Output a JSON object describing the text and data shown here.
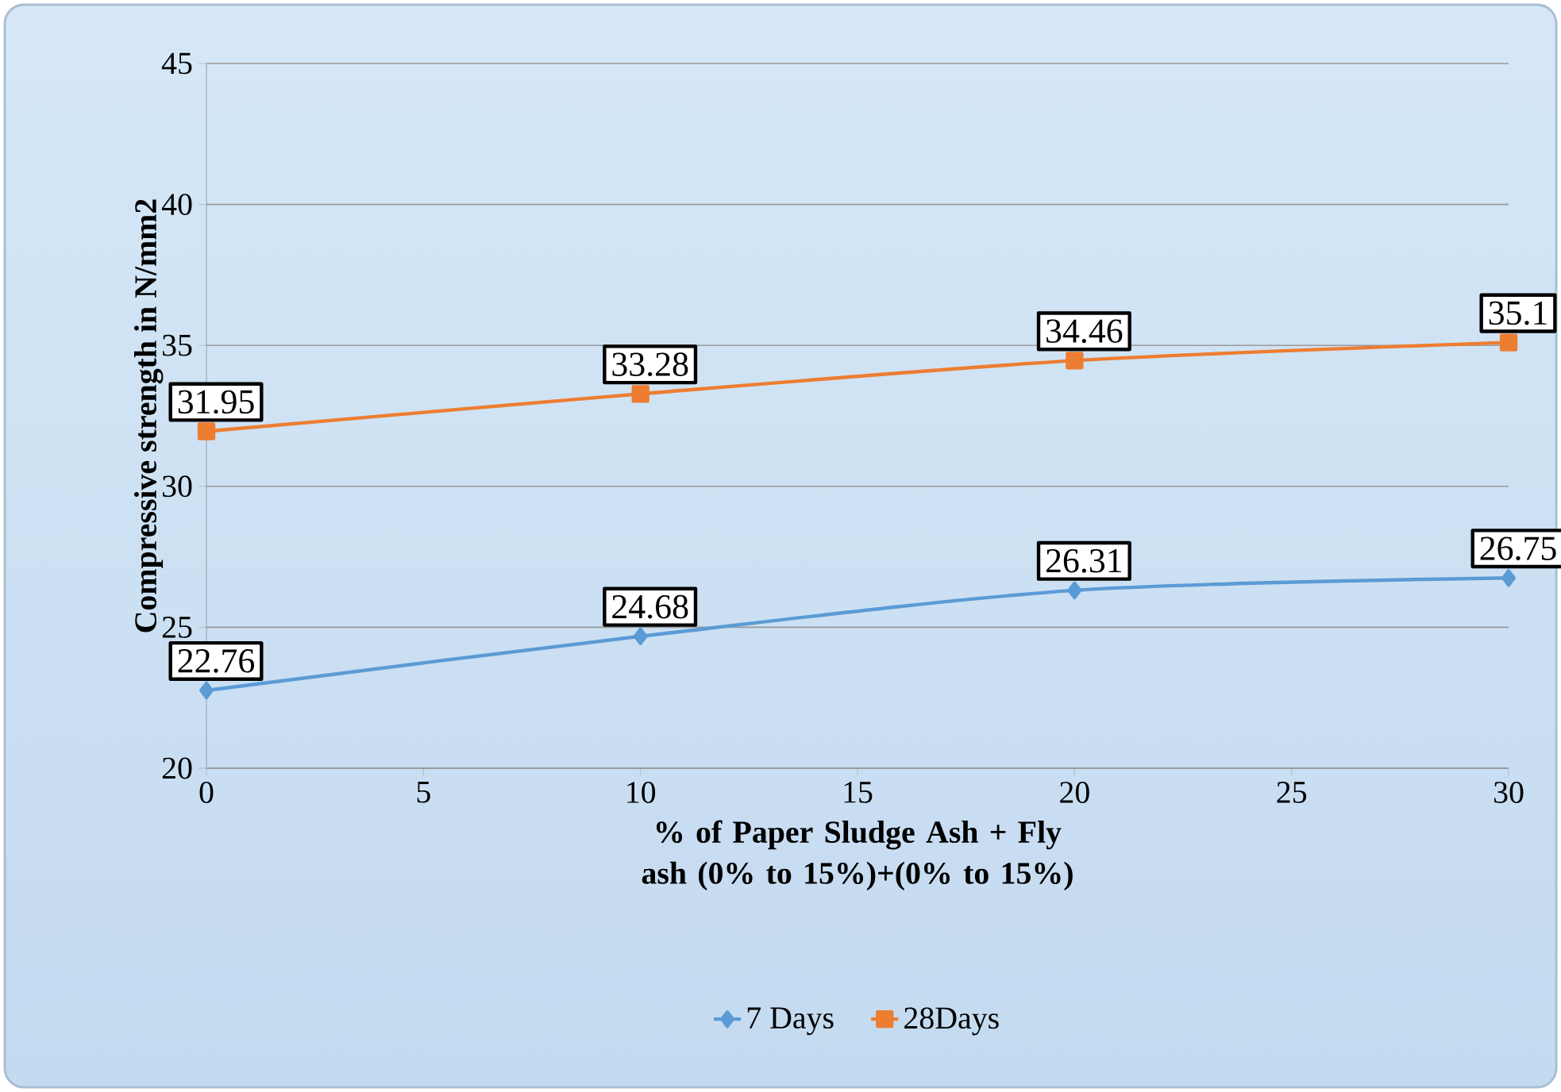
{
  "chart_data": {
    "type": "line",
    "xlabel": "% of Paper Sludge Ash + Fly ash (0% to 15%)+(0% to 15%)",
    "ylabel": "Compressive strength in N/mm2",
    "x": [
      0,
      10,
      20,
      30
    ],
    "series": [
      {
        "name": "7 Days",
        "color": "#5b9bd5",
        "marker": "diamond",
        "values": [
          22.76,
          24.68,
          26.31,
          26.75
        ]
      },
      {
        "name": "28Days",
        "color": "#ed7d31",
        "marker": "square",
        "values": [
          31.95,
          33.28,
          34.46,
          35.1
        ]
      }
    ],
    "xlim": [
      0,
      30
    ],
    "xticks": [
      0,
      5,
      10,
      15,
      20,
      25,
      30
    ],
    "ylim": [
      20,
      45
    ],
    "yticks": [
      20,
      25,
      30,
      35,
      40,
      45
    ],
    "grid": "y",
    "legend": "bottom",
    "data_labels": true
  }
}
